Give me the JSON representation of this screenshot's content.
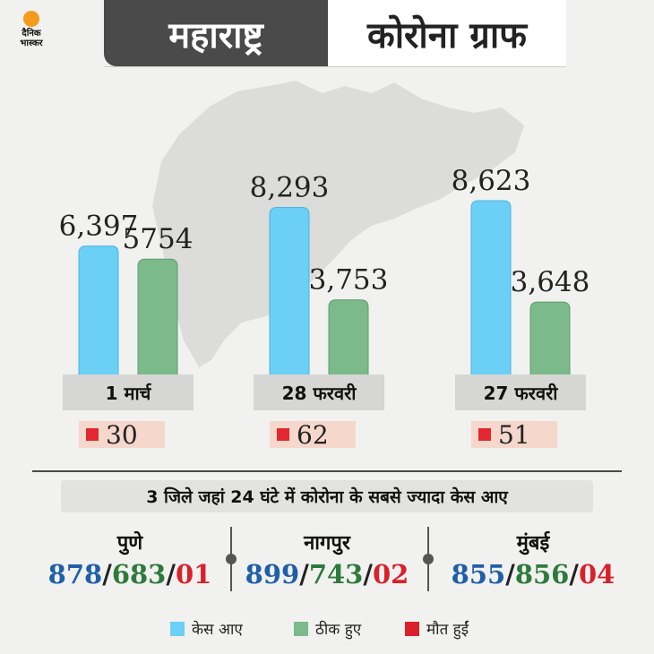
{
  "brand": {
    "line1": "दैनिक",
    "line2": "भास्कर"
  },
  "header": {
    "left": "महाराष्ट्र",
    "right": "कोरोना ग्राफ"
  },
  "colors": {
    "cases": "#6ccff6",
    "recovered": "#7cb98b",
    "deaths": "#e3262f"
  },
  "chart_data": {
    "type": "bar",
    "categories": [
      "1 मार्च",
      "28 फरवरी",
      "27 फरवरी"
    ],
    "series": [
      {
        "name": "केस आए",
        "values": [
          6397,
          8293,
          8623
        ],
        "labels": [
          "6,397",
          "8,293",
          "8,623"
        ]
      },
      {
        "name": "ठीक हुए",
        "values": [
          5754,
          3753,
          3648
        ],
        "labels": [
          "5754",
          "3,753",
          "3,648"
        ]
      }
    ],
    "deaths": [
      30,
      62,
      51
    ],
    "title": "",
    "xlabel": "",
    "ylabel": "",
    "ylim": [
      0,
      10000
    ],
    "grid": false,
    "legend": "bottom"
  },
  "districts": {
    "heading": "3 जिले जहां 24 घंटे में कोरोना के सबसे ज्यादा केस आए",
    "items": [
      {
        "name": "पुणे",
        "cases": "878",
        "recovered": "683",
        "deaths": "01"
      },
      {
        "name": "नागपुर",
        "cases": "899",
        "recovered": "743",
        "deaths": "02"
      },
      {
        "name": "मुंबई",
        "cases": "855",
        "recovered": "856",
        "deaths": "04"
      }
    ],
    "separator": "/"
  },
  "legend": {
    "cases": "केस आए",
    "recovered": "ठीक हुए",
    "deaths": "मौत हुईं"
  }
}
